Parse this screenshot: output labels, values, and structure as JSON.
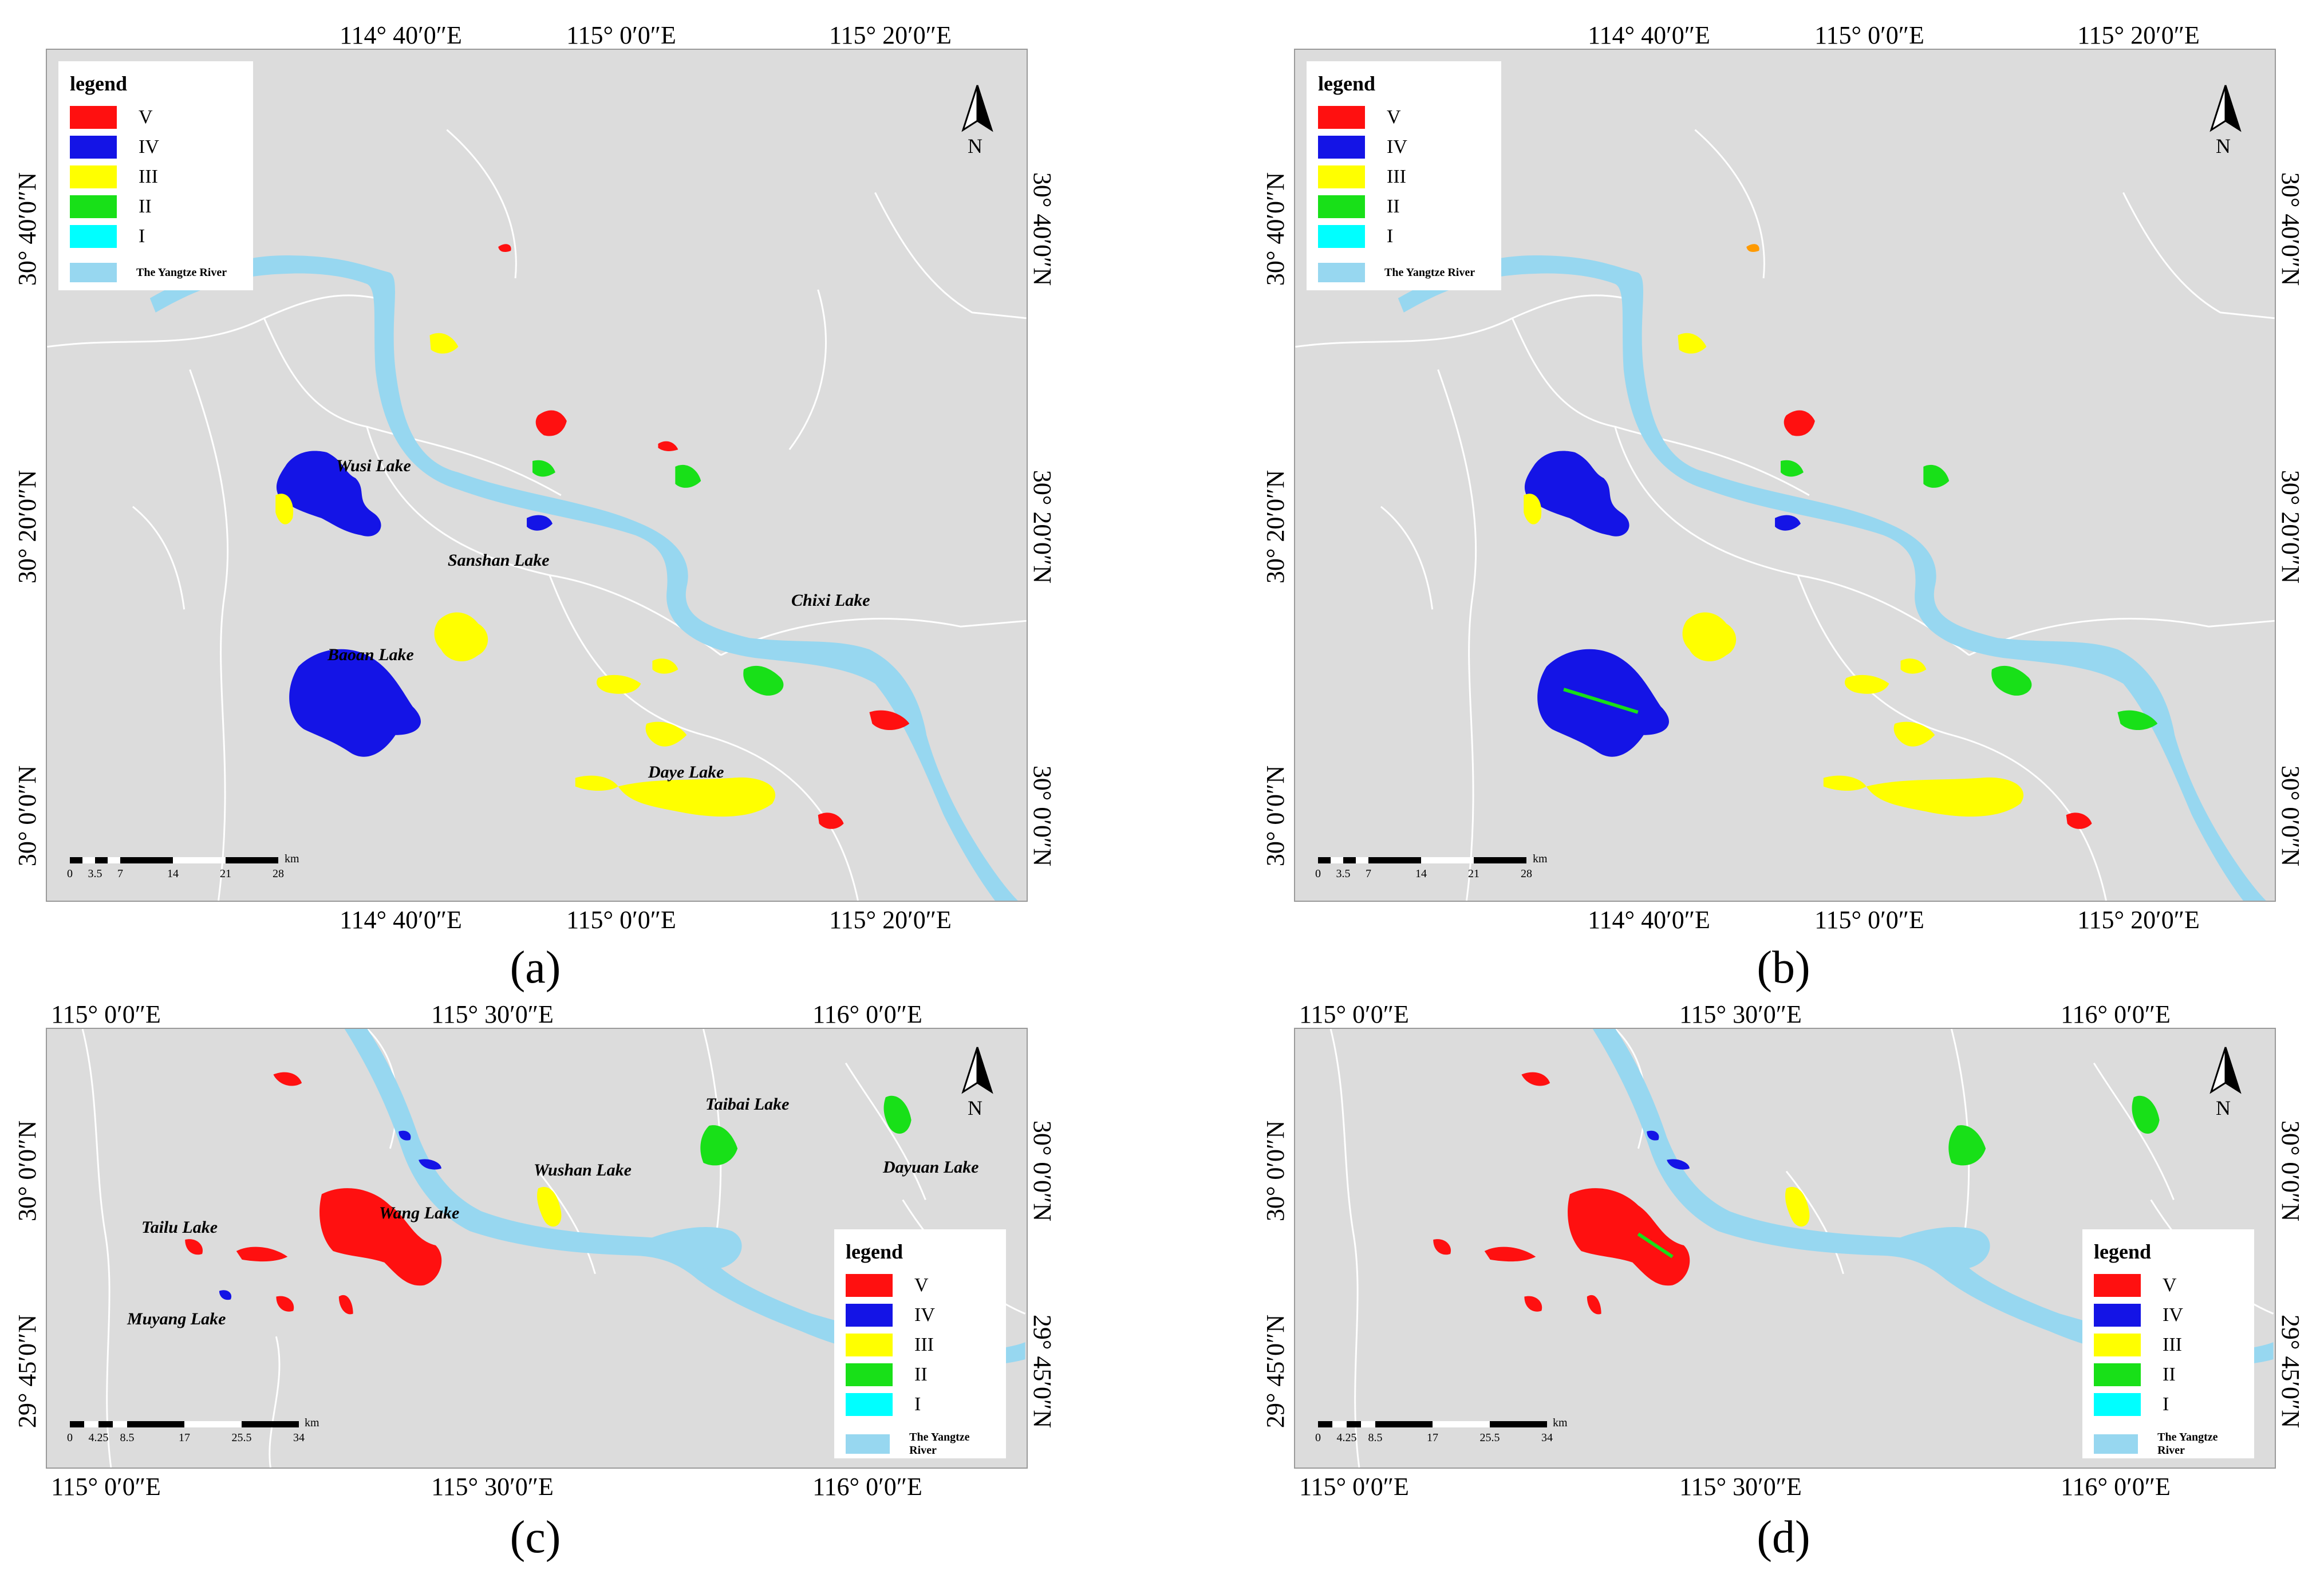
{
  "colors": {
    "V": "#ff1010",
    "IV": "#1414e6",
    "III": "#ffff00",
    "II": "#18e018",
    "I": "#00ffff",
    "river": "#97d7f0",
    "background": "#dcdcdc"
  },
  "legend": {
    "title": "legend",
    "classes": [
      "V",
      "IV",
      "III",
      "II",
      "I"
    ],
    "river_label": "The Yangtze River"
  },
  "north_label": "N",
  "scale_unit": "km",
  "panels": {
    "a": {
      "label": "(a)",
      "top_coords": [
        "114° 40′0″E",
        "115° 0′0″E",
        "115° 20′0″E"
      ],
      "bottom_coords": [
        "114° 40′0″E",
        "115° 0′0″E",
        "115° 20′0″E"
      ],
      "left_coords": [
        "30° 40′0″N",
        "30° 20′0″N",
        "30° 0′0″N"
      ],
      "right_coords": [
        "30° 40′0″N",
        "30° 20′0″N",
        "30° 0′0″N"
      ],
      "scale_ticks": [
        "0",
        "3.5",
        "7",
        "14",
        "21",
        "28"
      ],
      "lake_names": [
        "Wusi Lake",
        "Sanshan Lake",
        "Chixi Lake",
        "Baoan Lake",
        "Daye Lake"
      ]
    },
    "b": {
      "label": "(b)",
      "top_coords": [
        "114° 40′0″E",
        "115° 0′0″E",
        "115° 20′0″E"
      ],
      "bottom_coords": [
        "114° 40′0″E",
        "115° 0′0″E",
        "115° 20′0″E"
      ],
      "left_coords": [
        "30° 40′0″N",
        "30° 20′0″N",
        "30° 0′0″N"
      ],
      "right_coords": [
        "30° 40′0″N",
        "30° 20′0″N",
        "30° 0′0″N"
      ],
      "scale_ticks": [
        "0",
        "3.5",
        "7",
        "14",
        "21",
        "28"
      ]
    },
    "c": {
      "label": "(c)",
      "top_coords": [
        "115° 0′0″E",
        "115° 30′0″E",
        "116° 0′0″E"
      ],
      "bottom_coords": [
        "115° 0′0″E",
        "115° 30′0″E",
        "116° 0′0″E"
      ],
      "left_coords": [
        "30° 0′0″N",
        "29° 45′0″N"
      ],
      "right_coords": [
        "30° 0′0″N",
        "29° 45′0″N"
      ],
      "scale_ticks": [
        "0",
        "4.25",
        "8.5",
        "17",
        "25.5",
        "34"
      ],
      "lake_names": [
        "Taibai Lake",
        "Wushan Lake",
        "Dayuan Lake",
        "Wang Lake",
        "Tailu Lake",
        "Muyang Lake"
      ]
    },
    "d": {
      "label": "(d)",
      "top_coords": [
        "115° 0′0″E",
        "115° 30′0″E",
        "116° 0′0″E"
      ],
      "bottom_coords": [
        "115° 0′0″E",
        "115° 30′0″E",
        "116° 0′0″E"
      ],
      "left_coords": [
        "30° 0′0″N",
        "29° 45′0″N"
      ],
      "right_coords": [
        "30° 0′0″N",
        "29° 45′0″N"
      ],
      "scale_ticks": [
        "0",
        "4.25",
        "8.5",
        "17",
        "25.5",
        "34"
      ]
    }
  }
}
